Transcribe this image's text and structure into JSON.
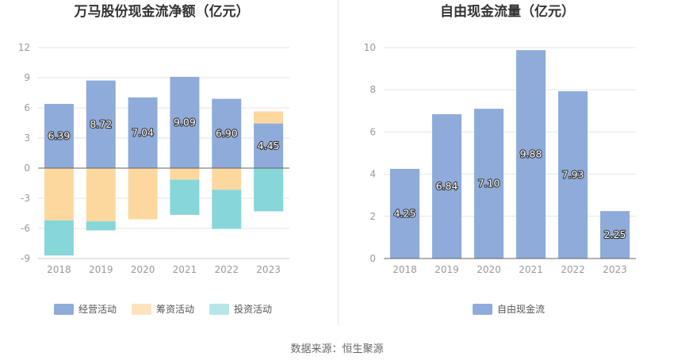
{
  "chart_data": [
    {
      "type": "bar",
      "stacked": true,
      "title": "万马股份现金流净额（亿元）",
      "categories": [
        "2018",
        "2019",
        "2020",
        "2021",
        "2022",
        "2023"
      ],
      "ylim": [
        -9,
        12
      ],
      "yticks": [
        -9,
        -6,
        -3,
        0,
        3,
        6,
        9,
        12
      ],
      "grid": true,
      "legend_position": "bottom",
      "series": [
        {
          "name": "经营活动",
          "color": "#8eabda",
          "values": [
            6.39,
            8.72,
            7.04,
            9.09,
            6.9,
            4.45
          ],
          "labels": [
            "6.39",
            "8.72",
            "7.04",
            "9.09",
            "6.90",
            "4.45"
          ]
        },
        {
          "name": "筹资活动",
          "color": "#fdd89e",
          "values": [
            -5.2,
            -5.3,
            -5.1,
            -1.15,
            -2.15,
            1.2
          ]
        },
        {
          "name": "投资活动",
          "color": "#87d6d9",
          "values": [
            -3.5,
            -0.9,
            0,
            -3.5,
            -3.9,
            -4.3
          ]
        }
      ]
    },
    {
      "type": "bar",
      "title": "自由现金流量（亿元）",
      "categories": [
        "2018",
        "2019",
        "2020",
        "2021",
        "2022",
        "2023"
      ],
      "ylim": [
        0,
        10
      ],
      "yticks": [
        0,
        2,
        4,
        6,
        8,
        10
      ],
      "grid": true,
      "legend_position": "bottom",
      "series": [
        {
          "name": "自由现金流",
          "color": "#8eabda",
          "values": [
            4.25,
            6.84,
            7.1,
            9.88,
            7.93,
            2.25
          ],
          "labels": [
            "4.25",
            "6.84",
            "7.10",
            "9.88",
            "7.93",
            "2.25"
          ]
        }
      ]
    }
  ],
  "source": "数据来源：恒生聚源"
}
